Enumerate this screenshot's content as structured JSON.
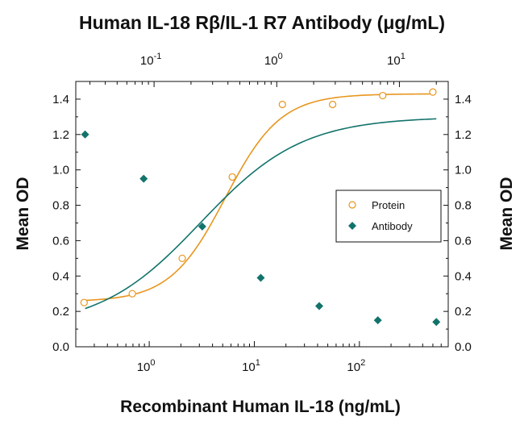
{
  "chart_data": {
    "type": "scatter",
    "title": "Human IL-18 Rβ/IL-1 R7 Antibody (μg/mL)",
    "xlabel": "Recombinant Human IL-18 (ng/mL)",
    "ylabel": "Mean OD",
    "ylabel_right": "Mean OD",
    "x_scale": "log",
    "x_top_scale": "log",
    "xlim": [
      0.2,
      700
    ],
    "x_top_lim": [
      0.023,
      25
    ],
    "ylim": [
      0,
      1.5
    ],
    "y_ticks": [
      "0.0",
      "0.2",
      "0.4",
      "0.6",
      "0.8",
      "1.0",
      "1.2",
      "1.4"
    ],
    "x_ticks": [
      {
        "value": 1,
        "label": "10",
        "exp": "0"
      },
      {
        "value": 10,
        "label": "10",
        "exp": "1"
      },
      {
        "value": 100,
        "label": "10",
        "exp": "2"
      }
    ],
    "x_top_ticks": [
      {
        "value": 0.1,
        "label": "10",
        "exp": "-1"
      },
      {
        "value": 1,
        "label": "10",
        "exp": "0"
      },
      {
        "value": 10,
        "label": "10",
        "exp": "1"
      }
    ],
    "grid": false,
    "legend_position": "right",
    "series": [
      {
        "name": "Protein",
        "axis": "bottom",
        "marker": "open-circle",
        "color": "#E8961E",
        "x": [
          0.24,
          0.69,
          2.06,
          6.17,
          18.5,
          55.6,
          166.7,
          500
        ],
        "y": [
          0.25,
          0.3,
          0.5,
          0.96,
          1.37,
          1.37,
          1.42,
          1.44
        ],
        "fit": {
          "bottom": 0.255,
          "top": 1.43,
          "ec50": 5.3,
          "hill": 1.65
        }
      },
      {
        "name": "Antibody",
        "axis": "top",
        "marker": "filled-diamond",
        "color": "#12736B",
        "x": [
          0.0274,
          0.0823,
          0.247,
          0.741,
          2.22,
          6.67,
          20
        ],
        "y": [
          1.2,
          0.95,
          0.68,
          0.39,
          0.23,
          0.15,
          0.14
        ],
        "fit": {
          "bottom": 0.105,
          "top": 1.3,
          "ec50": 0.24,
          "hill": 1.05
        }
      }
    ]
  }
}
